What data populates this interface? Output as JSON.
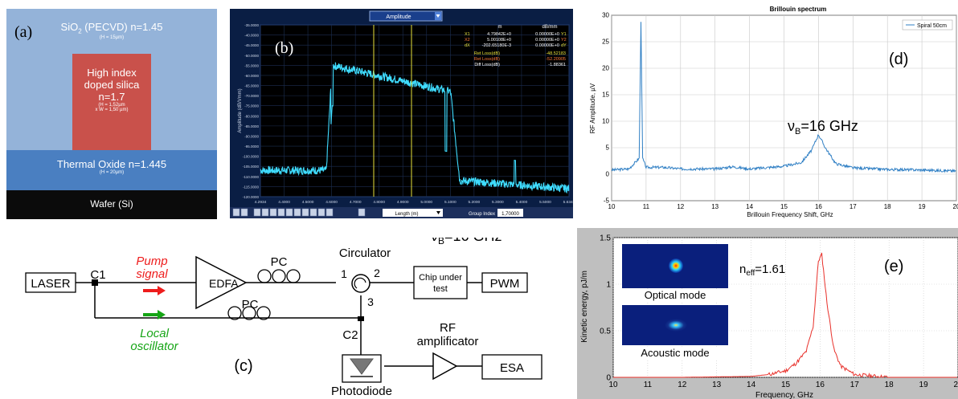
{
  "panel_a": {
    "tag": "(a)",
    "sio2_label": "SiO",
    "sio2_sub": "2",
    "sio2_rest": " (PECVD) n=1.45",
    "sio2_dim": "(H = 15µm)",
    "core_line1": "High index",
    "core_line2": "doped silica",
    "core_line3": "n=1.7",
    "core_dim1": "(H = 1,52µm",
    "core_dim2": "x W = 1,50 µm)",
    "thermal_label": "Thermal Oxide n=1.445",
    "thermal_dim": "(H = 20µm)",
    "wafer_label": "Wafer (Si)"
  },
  "panel_b": {
    "tag": "(b)",
    "dropdown": "Amplitude",
    "ylabel": "Amplitude (dB/Vmm)",
    "xlabel": "Length (m)",
    "group_index_label": "Group Index",
    "group_index_value": "1,70000",
    "col_m": "m",
    "col_dbmm": "dB/mm",
    "markers": [
      {
        "name": "X1",
        "m": "4.79842E+0",
        "db": "0.00000E+0",
        "tag": "Y1"
      },
      {
        "name": "X2",
        "m": "5.00108E+0",
        "db": "0.00000E+0",
        "tag": "Y2"
      },
      {
        "name": "dX",
        "m": "-202.65180E-3",
        "db": "0.00000E+0",
        "tag": "dY"
      }
    ],
    "losses": [
      {
        "label": "Ret Loss(dB)",
        "value": "-48.52183"
      },
      {
        "label": "Ret Loss(dB)",
        "value": "-52.20905"
      },
      {
        "label": "Diff Loss(dB)",
        "value": "-1.88361"
      }
    ],
    "yticks": [
      "-35.0000",
      "-40.0000",
      "-45.0000",
      "-50.0000",
      "-55.0000",
      "-60.0000",
      "-65.0000",
      "-70.0000",
      "-75.0000",
      "-80.0000",
      "-85.0000",
      "-90.0000",
      "-95.0000",
      "-100.0000",
      "-105.0000",
      "-110.0000",
      "-115.0000",
      "-120.0000"
    ],
    "xticks": [
      "4.2934",
      "4.4000",
      "4.5000",
      "4.6000",
      "4.7000",
      "4.8000",
      "4.9000",
      "5.0000",
      "5.1000",
      "5.2000",
      "5.3000",
      "5.4000",
      "5.5000",
      "5.6348"
    ]
  },
  "panel_c": {
    "tag": "(c)",
    "laser": "LASER",
    "c1": "C1",
    "pump1": "Pump",
    "pump2": "signal",
    "edfa": "EDFA",
    "pc1": "PC",
    "pc2": "PC",
    "circulator": "Circulator",
    "port1": "1",
    "port2": "2",
    "port3": "3",
    "chip1": "Chip under",
    "chip2": "test",
    "pwm": "PWM",
    "lo1": "Local",
    "lo2": "oscillator",
    "c2": "C2",
    "rf1": "RF",
    "rf2": "amplificator",
    "esa": "ESA",
    "photodiode": "Photodiode",
    "overlap_text": "ν",
    "overlap_sub": "B",
    "overlap_rest": "=16 GHz",
    "colors": {
      "pump": "#ee1c1c",
      "lo": "#16a516"
    }
  },
  "panel_d": {
    "tag": "(d)",
    "title": "Brillouin spectrum",
    "xlabel": "Brillouin Frequency Shift, GHz",
    "ylabel": "RF Amplitude, µV",
    "legend": "Spiral 50cm",
    "annot_nu": "ν",
    "annot_sub": "B",
    "annot_rest": "=16 GHz",
    "xticks": [
      "10",
      "11",
      "12",
      "13",
      "14",
      "15",
      "16",
      "17",
      "18",
      "19",
      "20"
    ],
    "yticks": [
      "30",
      "25",
      "20",
      "15",
      "10",
      "5",
      "0",
      "-5"
    ]
  },
  "panel_e": {
    "tag": "(e)",
    "xlabel": "Frequency, GHz",
    "ylabel": "Kinetic energy, pJ/m",
    "neff": "n",
    "neff_sub": "eff",
    "neff_rest": "=1.61",
    "optical_mode": "Optical mode",
    "acoustic_mode": "Acoustic mode",
    "xticks": [
      "10",
      "11",
      "12",
      "13",
      "14",
      "15",
      "16",
      "17",
      "18",
      "19",
      "20"
    ],
    "yticks": [
      "1.5",
      "1",
      "0.5",
      "0"
    ]
  },
  "chart_data": [
    {
      "type": "line",
      "title": "Brillouin spectrum",
      "xlabel": "Brillouin Frequency Shift, GHz",
      "ylabel": "RF Amplitude, µV",
      "xlim": [
        10,
        20
      ],
      "ylim": [
        -5,
        30
      ],
      "grid": true,
      "legend": "top-right",
      "series": [
        {
          "name": "Spiral 50cm",
          "color": "#2f7fc4",
          "x": [
            10,
            10.5,
            10.8,
            10.85,
            10.9,
            11,
            11.5,
            12,
            13,
            13.5,
            14,
            15,
            15.5,
            15.8,
            16,
            16.2,
            16.5,
            17,
            18,
            19,
            20
          ],
          "y": [
            0.8,
            1.0,
            3,
            29,
            3,
            1.3,
            1.3,
            1.0,
            1.0,
            1.4,
            1.0,
            1.5,
            2.2,
            4.5,
            7.5,
            5.0,
            2.0,
            1.2,
            0.9,
            0.8,
            0.6
          ]
        }
      ]
    },
    {
      "type": "line",
      "xlabel": "Frequency, GHz",
      "ylabel": "Kinetic energy, pJ/m",
      "xlim": [
        10,
        20
      ],
      "ylim": [
        0,
        1.5
      ],
      "grid": true,
      "series": [
        {
          "color": "#e8302a",
          "x": [
            10,
            12,
            14,
            14.5,
            15,
            15.3,
            15.6,
            15.8,
            15.95,
            16.05,
            16.2,
            16.4,
            16.6,
            17,
            18,
            20
          ],
          "y": [
            0,
            0,
            0.01,
            0.03,
            0.07,
            0.15,
            0.28,
            0.55,
            1.25,
            1.32,
            0.8,
            0.3,
            0.12,
            0.03,
            0,
            0
          ]
        }
      ]
    }
  ]
}
